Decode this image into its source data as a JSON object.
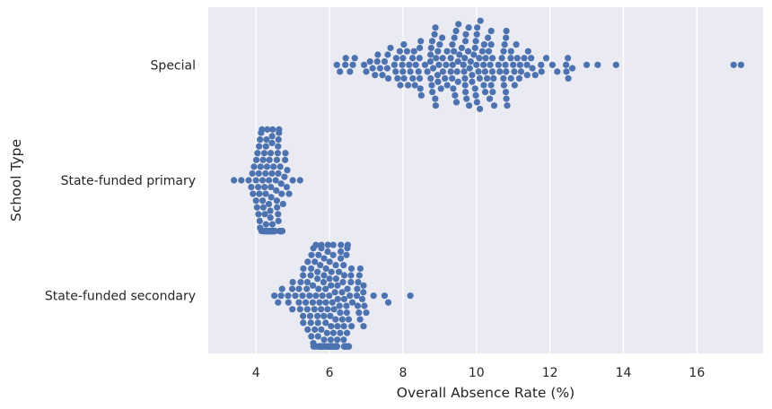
{
  "chart_data": {
    "type": "scatter",
    "subtype": "swarm",
    "orientation": "horizontal",
    "title": "",
    "xlabel": "Overall Absence Rate (%)",
    "ylabel": "School Type",
    "xlim": [
      2.7,
      17.8
    ],
    "xticks": [
      "4",
      "6",
      "8",
      "10",
      "12",
      "14",
      "16"
    ],
    "grid": true,
    "background": "#eaeaf2",
    "grid_color": "#ffffff",
    "point_color": "#4c72b0",
    "categories": [
      "Special",
      "State-funded primary",
      "State-funded secondary"
    ],
    "series": [
      {
        "category": "Special",
        "range": [
          6.2,
          17.2
        ],
        "center": 9.4,
        "count": 190,
        "approx_values": [
          6.2,
          7.0,
          7.3,
          7.6,
          7.8,
          8.0,
          8.2,
          8.3,
          8.5,
          8.6,
          8.8,
          8.9,
          9.0,
          9.2,
          9.3,
          9.4,
          9.5,
          9.6,
          9.7,
          9.8,
          10.0,
          10.2,
          10.4,
          10.6,
          10.8,
          11.0,
          11.3,
          11.6,
          11.9,
          12.2,
          12.5,
          13.0,
          13.3,
          13.8,
          17.0,
          17.2
        ]
      },
      {
        "category": "State-funded primary",
        "range": [
          3.4,
          5.2
        ],
        "center": 4.4,
        "count": 140,
        "approx_values": [
          3.4,
          3.6,
          3.8,
          4.0,
          4.1,
          4.2,
          4.3,
          4.4,
          4.5,
          4.6,
          4.7,
          4.8,
          4.9,
          5.0,
          5.2
        ]
      },
      {
        "category": "State-funded secondary",
        "range": [
          4.5,
          8.2
        ],
        "center": 6.0,
        "count": 180,
        "approx_values": [
          4.5,
          4.6,
          5.0,
          5.2,
          5.4,
          5.6,
          5.8,
          5.9,
          6.0,
          6.1,
          6.2,
          6.4,
          6.6,
          6.8,
          7.0,
          7.2,
          7.5,
          7.6,
          8.2
        ]
      }
    ]
  }
}
